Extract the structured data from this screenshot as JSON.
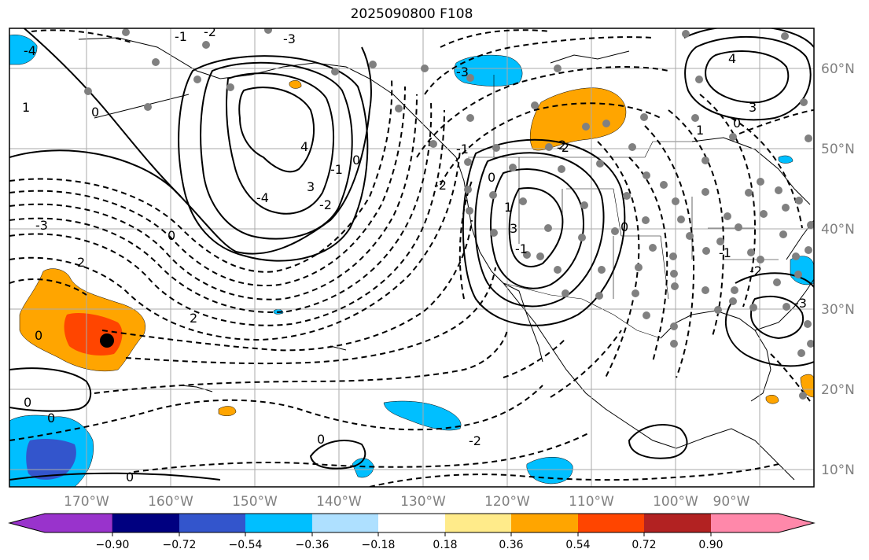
{
  "title": "2025090800 F108",
  "longitude_labels": [
    "170°W",
    "160°W",
    "150°W",
    "140°W",
    "130°W",
    "120°W",
    "110°W",
    "100°W",
    "90°W"
  ],
  "latitude_labels": [
    "60°N",
    "50°N",
    "40°N",
    "30°N",
    "20°N",
    "10°N"
  ],
  "colorbar": {
    "tick_labels": [
      "−0.90",
      "−0.72",
      "−0.54",
      "−0.36",
      "−0.18",
      "0.18",
      "0.36",
      "0.54",
      "0.72",
      "0.90"
    ],
    "colors": [
      "#9933cc",
      "#000080",
      "#3355cc",
      "#00bfff",
      "#aee0ff",
      "#ffffff",
      "#ffeb8a",
      "#ffa500",
      "#ff4500",
      "#b22222",
      "#ff88aa"
    ]
  },
  "contour_labels": [
    "1",
    "0",
    "-1",
    "-2",
    "-3",
    "-4",
    "0",
    "2",
    "3",
    "4",
    "0",
    "-1",
    "-2",
    "-3",
    "-4",
    "2",
    "3",
    "-3",
    "-2",
    "0",
    "1",
    "-1",
    "0",
    "0",
    "-1",
    "-2",
    "0",
    "0",
    "0",
    "-2",
    "2",
    "1",
    "0",
    "-1",
    "-2",
    "-3",
    "4",
    "3",
    "0",
    "1"
  ]
}
